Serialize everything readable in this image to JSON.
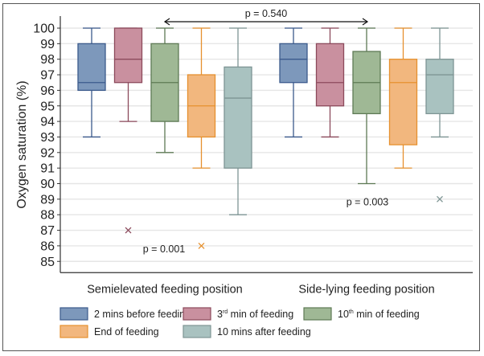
{
  "chart_data": {
    "type": "box",
    "title": "",
    "xlabel": "",
    "ylabel": "Oxygen saturation (%)",
    "ylim": [
      85,
      100
    ],
    "yticks": [
      85,
      86,
      87,
      88,
      89,
      90,
      91,
      92,
      93,
      94,
      95,
      96,
      97,
      98,
      99,
      100
    ],
    "grid": true,
    "legend_position": "bottom",
    "categories": [
      "Semielevated feeding position",
      "Side-lying feeding position"
    ],
    "series": [
      {
        "name": "2 mins before feeding",
        "color": "#7d98bb",
        "edge": "#3b5a8c",
        "boxes": [
          {
            "whisker_low": 93,
            "q1": 96,
            "median": 96.5,
            "q3": 99,
            "whisker_high": 100,
            "outliers": []
          },
          {
            "whisker_low": 93,
            "q1": 96.5,
            "median": 98,
            "q3": 99,
            "whisker_high": 100,
            "outliers": []
          }
        ]
      },
      {
        "name": "3rd min of feeding",
        "legend_main": "3",
        "legend_sup": "rd",
        "legend_rest": " min of feeding",
        "color": "#c9909f",
        "edge": "#8c4a5c",
        "boxes": [
          {
            "whisker_low": 94,
            "q1": 96.5,
            "median": 98,
            "q3": 100,
            "whisker_high": 100,
            "outliers": [
              87
            ]
          },
          {
            "whisker_low": 93,
            "q1": 95,
            "median": 96.5,
            "q3": 99,
            "whisker_high": 100,
            "outliers": []
          }
        ]
      },
      {
        "name": "10th min of feeding",
        "legend_main": "10",
        "legend_sup": "th",
        "legend_rest": " min of feeding",
        "color": "#9fb895",
        "edge": "#5e7a55",
        "boxes": [
          {
            "whisker_low": 92,
            "q1": 94,
            "median": 96.5,
            "q3": 99,
            "whisker_high": 100,
            "outliers": []
          },
          {
            "whisker_low": 90,
            "q1": 94.5,
            "median": 96.5,
            "q3": 98.5,
            "whisker_high": 100,
            "outliers": []
          }
        ]
      },
      {
        "name": "End of feeding",
        "color": "#f2b77e",
        "edge": "#e6912f",
        "boxes": [
          {
            "whisker_low": 91,
            "q1": 93,
            "median": 95,
            "q3": 97,
            "whisker_high": 100,
            "outliers": [
              86
            ]
          },
          {
            "whisker_low": 91,
            "q1": 92.5,
            "median": 96.5,
            "q3": 98,
            "whisker_high": 100,
            "outliers": []
          }
        ]
      },
      {
        "name": "10 mins after feeding",
        "color": "#a9c2c0",
        "edge": "#7e9594",
        "boxes": [
          {
            "whisker_low": 88,
            "q1": 91,
            "median": 95.5,
            "q3": 97.5,
            "whisker_high": 100,
            "outliers": []
          },
          {
            "whisker_low": 93,
            "q1": 94.5,
            "median": 97,
            "q3": 98,
            "whisker_high": 100,
            "outliers": [
              89
            ]
          }
        ]
      }
    ],
    "annotations": [
      {
        "text": "p = 0.540",
        "type": "between-groups-arrow",
        "y": 100.4
      },
      {
        "text": "p = 0.001",
        "group": 0,
        "y": 85.8
      },
      {
        "text": "p = 0.003",
        "group": 1,
        "y": 88.8
      }
    ]
  }
}
